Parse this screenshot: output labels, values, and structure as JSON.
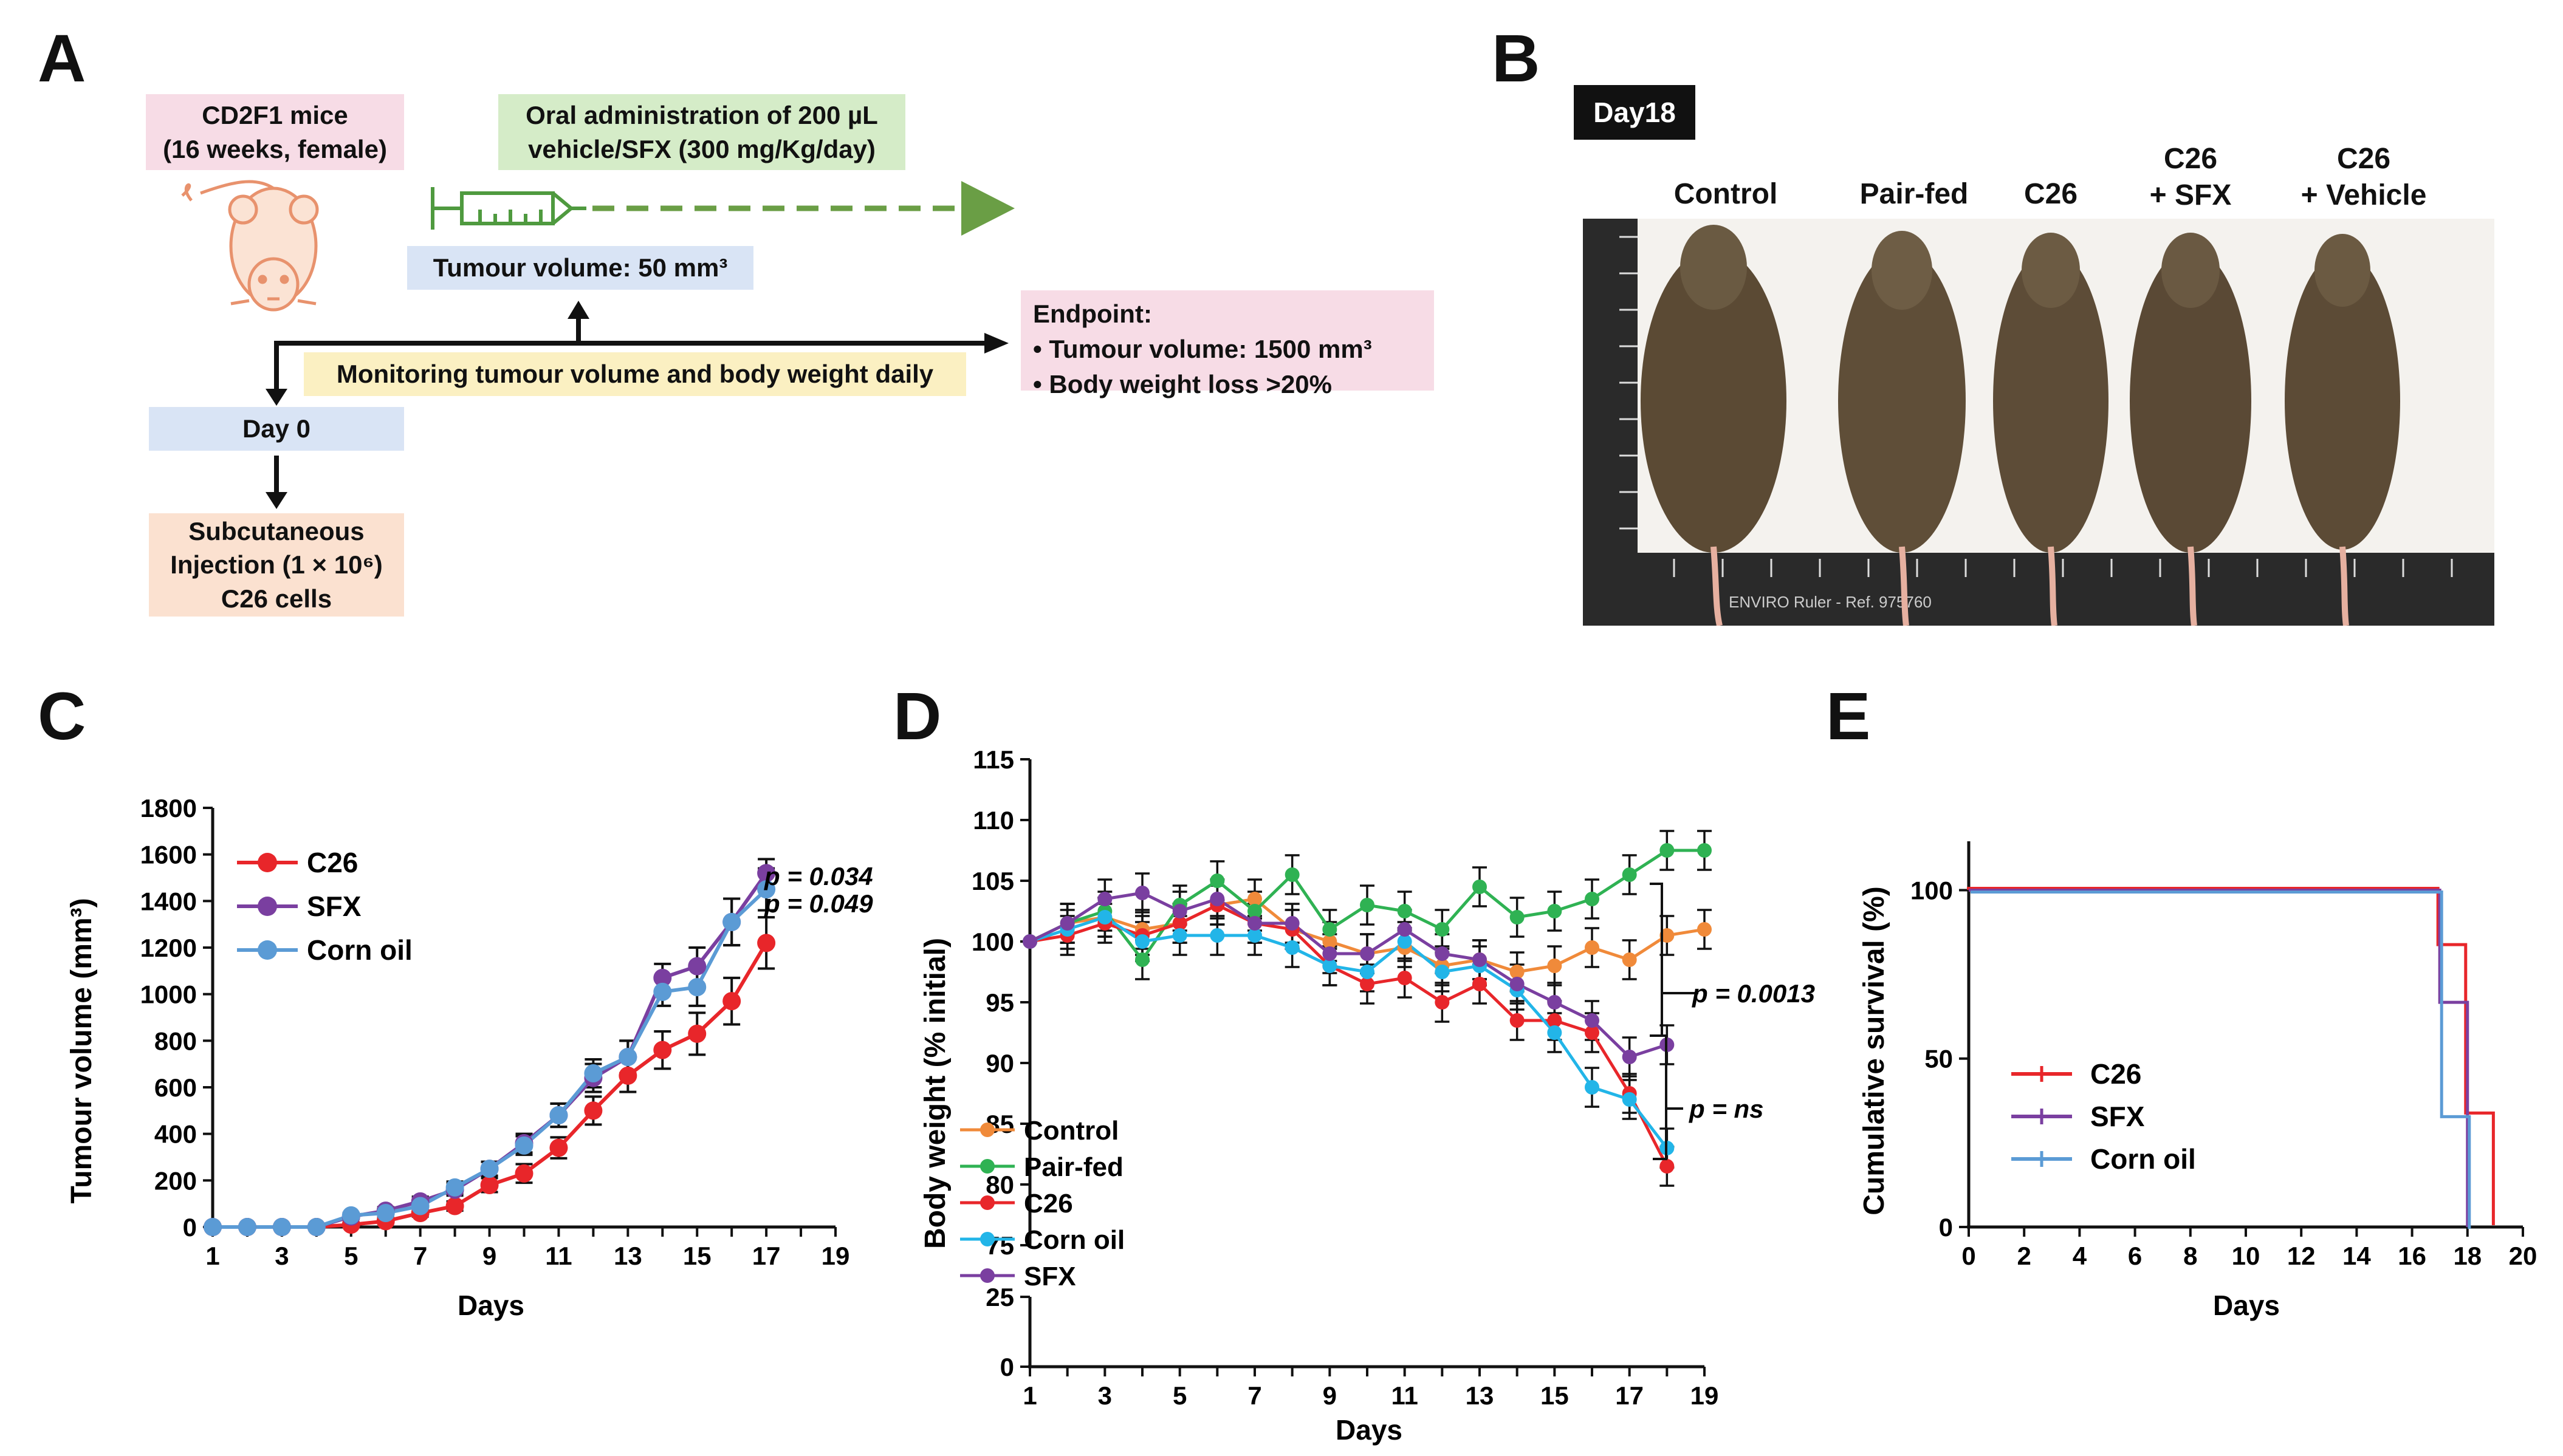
{
  "panels": {
    "a": "A",
    "b": "B",
    "c": "C",
    "d": "D",
    "e": "E"
  },
  "panel_a": {
    "mice_label": "CD2F1 mice\n(16 weeks, female)",
    "oral_label": "Oral administration of 200 µL\nvehicle/SFX (300 mg/Kg/day)",
    "tumour_label": "Tumour volume: 50 mm³",
    "monitor_label": "Monitoring tumour volume and body weight daily",
    "day0_label": "Day 0",
    "injection_label": "Subcutaneous\nInjection  (1 × 10⁶)\nC26 cells",
    "endpoint_title": "Endpoint:",
    "endpoint_items": [
      "•  Tumour volume: 1500 mm³",
      "•  Body weight loss >20%"
    ],
    "colors": {
      "arrow_green": "#6a9e45",
      "syringe": "#4f9a3f",
      "mouse": "#e8926d"
    }
  },
  "panel_b": {
    "day_badge": "Day18",
    "mouse_labels": [
      "Control",
      "Pair-fed",
      "C26",
      "C26\n+ SFX",
      "C26\n+ Vehicle"
    ],
    "ruler_text": "ENVIRO Ruler - Ref. 975760"
  },
  "chart_data": [
    {
      "id": "C",
      "type": "line",
      "xlabel": "Days",
      "ylabel": "Tumour volume (mm³)",
      "xlim": [
        1,
        19
      ],
      "ylim": [
        0,
        1800
      ],
      "xticks": [
        1,
        3,
        5,
        7,
        9,
        11,
        13,
        15,
        17,
        19
      ],
      "yticks": [
        0,
        200,
        400,
        600,
        800,
        1000,
        1200,
        1400,
        1600,
        1800
      ],
      "x": [
        1,
        2,
        3,
        4,
        5,
        6,
        7,
        8,
        9,
        10,
        11,
        12,
        13,
        14,
        15,
        16,
        17
      ],
      "series": [
        {
          "name": "C26",
          "color": "#e8262a",
          "values": [
            0,
            0,
            0,
            0,
            10,
            25,
            60,
            90,
            180,
            230,
            340,
            500,
            650,
            760,
            830,
            970,
            1220
          ],
          "errors": [
            0,
            0,
            0,
            0,
            8,
            10,
            15,
            20,
            30,
            40,
            45,
            60,
            70,
            80,
            90,
            100,
            110
          ]
        },
        {
          "name": "SFX",
          "color": "#7a3fa0",
          "values": [
            0,
            0,
            0,
            0,
            45,
            70,
            110,
            160,
            250,
            360,
            480,
            640,
            730,
            1070,
            1120,
            1310,
            1520
          ],
          "errors": [
            0,
            0,
            0,
            0,
            10,
            15,
            20,
            25,
            30,
            40,
            50,
            60,
            70,
            60,
            80,
            100,
            60
          ]
        },
        {
          "name": "Corn oil",
          "color": "#5b9bd5",
          "values": [
            0,
            0,
            0,
            0,
            50,
            60,
            90,
            170,
            250,
            350,
            480,
            660,
            730,
            1010,
            1030,
            1310,
            1450
          ],
          "errors": [
            0,
            0,
            0,
            0,
            10,
            15,
            20,
            25,
            30,
            40,
            50,
            60,
            70,
            60,
            80,
            100,
            90
          ]
        }
      ],
      "annotations": [
        "p = 0.034",
        "p = 0.049"
      ]
    },
    {
      "id": "D",
      "type": "line",
      "xlabel": "Days",
      "ylabel": "Body weight (% initial)",
      "xlim": [
        1,
        19
      ],
      "ylim": [
        0,
        115
      ],
      "axis_break": [
        25,
        75
      ],
      "xticks": [
        1,
        3,
        5,
        7,
        9,
        11,
        13,
        15,
        17,
        19
      ],
      "yticks_upper": [
        75,
        80,
        85,
        90,
        95,
        100,
        105,
        110,
        115
      ],
      "yticks_lower": [
        0,
        25
      ],
      "x": [
        1,
        2,
        3,
        4,
        5,
        6,
        7,
        8,
        9,
        10,
        11,
        12,
        13,
        14,
        15,
        16,
        17,
        18,
        19
      ],
      "series": [
        {
          "name": "Control",
          "color": "#f08a3a",
          "values": [
            100,
            101.5,
            102,
            101,
            101.5,
            103,
            103.5,
            101,
            100,
            99,
            99.5,
            98,
            98.5,
            97.5,
            98,
            99.5,
            98.5,
            100.5,
            101
          ]
        },
        {
          "name": "Pair-fed",
          "color": "#2fb253",
          "values": [
            100,
            101.5,
            102.5,
            98.5,
            103,
            105,
            102.5,
            105.5,
            101,
            103,
            102.5,
            101,
            104.5,
            102,
            102.5,
            103.5,
            105.5,
            107.5,
            107.5
          ]
        },
        {
          "name": "C26",
          "color": "#e8262a",
          "values": [
            100,
            100.5,
            101.5,
            100.5,
            101.5,
            103,
            101.5,
            101,
            98,
            96.5,
            97,
            95,
            96.5,
            93.5,
            93.5,
            92.5,
            87.5,
            81.5,
            null
          ]
        },
        {
          "name": "Corn oil",
          "color": "#22b5e8",
          "values": [
            100,
            101,
            102,
            100,
            100.5,
            100.5,
            100.5,
            99.5,
            98,
            97.5,
            100,
            97.5,
            98,
            96,
            92.5,
            88,
            87,
            83,
            null
          ]
        },
        {
          "name": "SFX",
          "color": "#7a3fa0",
          "values": [
            100,
            101.5,
            103.5,
            104,
            102.5,
            103.5,
            101.5,
            101.5,
            99,
            99,
            101,
            99,
            98.5,
            96.5,
            95,
            93.5,
            90.5,
            91.5,
            null
          ]
        }
      ],
      "annotations": [
        "p = 0.0013",
        "p = ns"
      ]
    },
    {
      "id": "E",
      "type": "line",
      "xlabel": "Days",
      "ylabel": "Cumulative survival (%)",
      "xlim": [
        0,
        20
      ],
      "ylim": [
        0,
        110
      ],
      "xticks": [
        0,
        2,
        4,
        6,
        8,
        10,
        12,
        14,
        16,
        18,
        20
      ],
      "yticks": [
        0,
        50,
        100
      ],
      "series": [
        {
          "name": "C26",
          "color": "#e8262a",
          "steps": [
            [
              0,
              100
            ],
            [
              17,
              100
            ],
            [
              17,
              83.3
            ],
            [
              18,
              83.3
            ],
            [
              18,
              33.3
            ],
            [
              19,
              33.3
            ],
            [
              19,
              0
            ]
          ]
        },
        {
          "name": "SFX",
          "color": "#7a3fa0",
          "steps": [
            [
              0,
              100
            ],
            [
              17,
              100
            ],
            [
              17,
              66.7
            ],
            [
              18,
              66.7
            ],
            [
              18,
              0
            ]
          ]
        },
        {
          "name": "Corn oil",
          "color": "#5b9bd5",
          "steps": [
            [
              0,
              100
            ],
            [
              17,
              100
            ],
            [
              17,
              33.3
            ],
            [
              18,
              33.3
            ],
            [
              18,
              0
            ]
          ]
        }
      ]
    }
  ]
}
